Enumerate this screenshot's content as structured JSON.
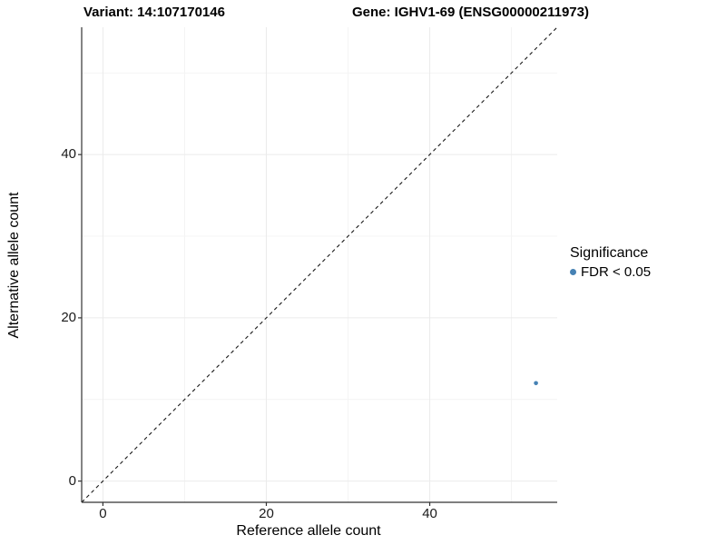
{
  "chart_data": {
    "type": "scatter",
    "title_segments": [
      "Variant: 14:107170146",
      "Gene: IGHV1-69 (ENSG00000211973)"
    ],
    "xlabel": "Reference allele count",
    "ylabel": "Alternative allele count",
    "xlim": [
      -2.6,
      55.6
    ],
    "ylim": [
      -2.6,
      55.6
    ],
    "x_major_ticks": [
      0,
      20,
      40
    ],
    "x_minor_ticks": [
      10,
      30,
      50
    ],
    "y_major_ticks": [
      0,
      20,
      40
    ],
    "y_minor_ticks": [
      10,
      30,
      50
    ],
    "grid": true,
    "identity_line": {
      "style": "dashed",
      "from": -2.6,
      "to": 55.6
    },
    "series": [
      {
        "name": "FDR < 0.05",
        "color": "#4682B4",
        "points": [
          {
            "x": 53,
            "y": 12
          }
        ]
      }
    ],
    "legend": {
      "title": "Significance",
      "position": "right",
      "entries": [
        {
          "label": "FDR < 0.05",
          "color": "#4682B4"
        }
      ]
    },
    "colors": {
      "background": "#ffffff",
      "grid_major": "#ebebeb",
      "grid_minor": "#f4f4f4",
      "axis_line": "#333333",
      "tick_mark": "#333333",
      "identity_line": "#1a1a1a",
      "point": "#4682B4"
    }
  }
}
